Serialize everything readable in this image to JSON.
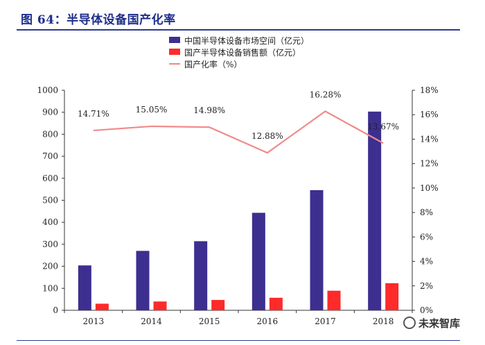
{
  "header": {
    "title": "图 64：半导体设备国产化率"
  },
  "watermark": {
    "text": "未来智库"
  },
  "chart_data": {
    "type": "bar",
    "title": "",
    "categories": [
      "2013",
      "2014",
      "2015",
      "2016",
      "2017",
      "2018"
    ],
    "series": [
      {
        "name": "中国半导体设备市场空间（亿元）",
        "type": "bar",
        "axis": "left",
        "color": "#3c2f8f",
        "values": [
          204,
          270,
          314,
          443,
          546,
          903
        ]
      },
      {
        "name": "国产半导体设备销售额（亿元）",
        "type": "bar",
        "axis": "left",
        "color": "#ff2a2a",
        "values": [
          30,
          40,
          47,
          57,
          89,
          123
        ]
      },
      {
        "name": "国产化率（%）",
        "type": "line",
        "axis": "right",
        "color": "#f08a8a",
        "values": [
          14.71,
          15.05,
          14.98,
          12.88,
          16.28,
          13.67
        ],
        "labels": [
          "14.71%",
          "15.05%",
          "14.98%",
          "12.88%",
          "16.28%",
          "13.67%"
        ]
      }
    ],
    "y_left": {
      "min": 0,
      "max": 1000,
      "ticks": [
        "0",
        "100",
        "200",
        "300",
        "400",
        "500",
        "600",
        "700",
        "800",
        "900",
        "1000"
      ]
    },
    "y_right": {
      "min": 0,
      "max": 18,
      "ticks": [
        "0%",
        "2%",
        "4%",
        "6%",
        "8%",
        "10%",
        "12%",
        "14%",
        "16%",
        "18%"
      ]
    },
    "legend_position": "top"
  }
}
